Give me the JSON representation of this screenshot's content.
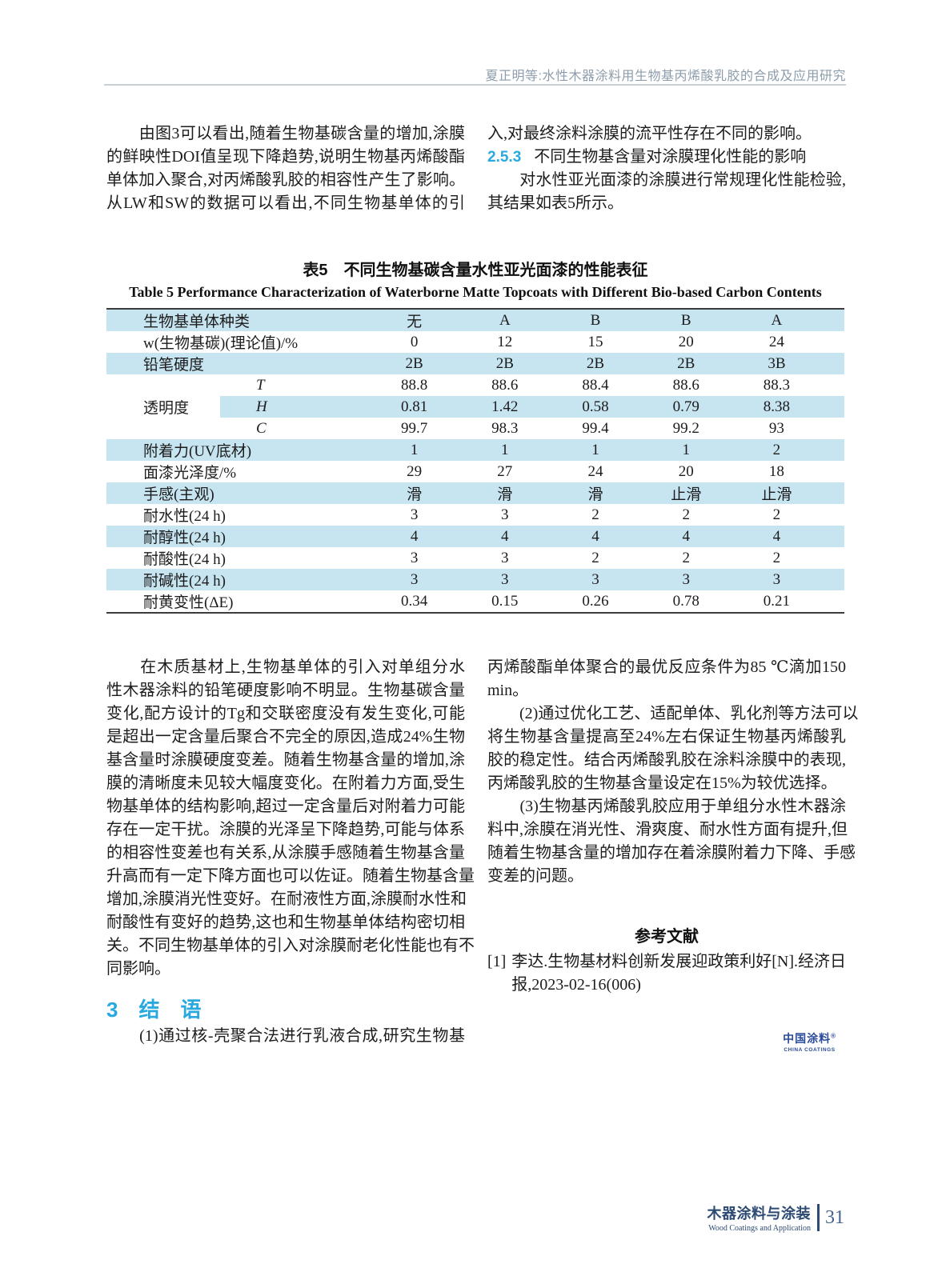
{
  "colors": {
    "accent_cyan": "#29a9e0",
    "table_row_blue": "#c7e4f1",
    "running_head_gray": "#8d9dab",
    "footer_navy": "#2c4a73",
    "logo_blue": "#2a4b9b"
  },
  "header": {
    "running_title": "夏正明等:水性木器涂料用生物基丙烯酸乳胶的合成及应用研究"
  },
  "intro": {
    "left_lines": [
      "　　由图3可以看出,随着生物基碳含量的增加,涂膜",
      "的鲜映性DOI值呈现下降趋势,说明生物基丙烯酸酯",
      "单体加入聚合,对丙烯酸乳胶的相容性产生了影响。",
      "从LW和SW的数据可以看出,不同生物基单体的引"
    ],
    "right_line_1": "入,对最终涂料涂膜的流平性存在不同的影响。",
    "section": {
      "number": "2.5.3",
      "title": "不同生物基含量对涂膜理化性能的影响"
    },
    "right_line_2": "　　对水性亚光面漆的涂膜进行常规理化性能检验,",
    "right_line_3": "其结果如表5所示。"
  },
  "table": {
    "caption_zh": "表5　不同生物基碳含量水性亚光面漆的性能表征",
    "caption_en": "Table 5   Performance Characterization of Waterborne Matte Topcoats with Different Bio-based Carbon Contents",
    "rows": [
      {
        "label": "生物基单体种类",
        "values": [
          "无",
          "A",
          "B",
          "B",
          "A"
        ]
      },
      {
        "label": "w(生物基碳)(理论值)/%",
        "values": [
          "0",
          "12",
          "15",
          "20",
          "24"
        ]
      },
      {
        "label": "铅笔硬度",
        "values": [
          "2B",
          "2B",
          "2B",
          "2B",
          "3B"
        ]
      },
      {
        "group": "",
        "sub": "T",
        "values": [
          "88.8",
          "88.6",
          "88.4",
          "88.6",
          "88.3"
        ]
      },
      {
        "group": "透明度",
        "sub": "H",
        "values": [
          "0.81",
          "1.42",
          "0.58",
          "0.79",
          "8.38"
        ]
      },
      {
        "group": "",
        "sub": "C",
        "values": [
          "99.7",
          "98.3",
          "99.4",
          "99.2",
          "93"
        ]
      },
      {
        "label": "附着力(UV底材)",
        "values": [
          "1",
          "1",
          "1",
          "1",
          "2"
        ]
      },
      {
        "label": "面漆光泽度/%",
        "values": [
          "29",
          "27",
          "24",
          "20",
          "18"
        ]
      },
      {
        "label": "手感(主观)",
        "values": [
          "滑",
          "滑",
          "滑",
          "止滑",
          "止滑"
        ]
      },
      {
        "label": "耐水性(24 h)",
        "values": [
          "3",
          "3",
          "2",
          "2",
          "2"
        ]
      },
      {
        "label": "耐醇性(24 h)",
        "values": [
          "4",
          "4",
          "4",
          "4",
          "4"
        ]
      },
      {
        "label": "耐酸性(24 h)",
        "values": [
          "3",
          "3",
          "2",
          "2",
          "2"
        ]
      },
      {
        "label": "耐碱性(24 h)",
        "values": [
          "3",
          "3",
          "3",
          "3",
          "3"
        ]
      },
      {
        "label": "耐黄变性(ΔE)",
        "values": [
          "0.34",
          "0.15",
          "0.26",
          "0.78",
          "0.21"
        ]
      }
    ]
  },
  "discussion": {
    "left_lines": [
      "　　在木质基材上,生物基单体的引入对单组分水",
      "性木器涂料的铅笔硬度影响不明显。生物基碳含量",
      "变化,配方设计的Tg和交联密度没有发生变化,可能",
      "是超出一定含量后聚合不完全的原因,造成24%生物",
      "基含量时涂膜硬度变差。随着生物基含量的增加,涂",
      "膜的清晰度未见较大幅度变化。在附着力方面,受生",
      "物基单体的结构影响,超过一定含量后对附着力可能",
      "存在一定干扰。涂膜的光泽呈下降趋势,可能与体系",
      "的相容性变差也有关系,从涂膜手感随着生物基含量",
      "升高而有一定下降方面也可以佐证。随着生物基含量",
      "增加,涂膜消光性变好。在耐液性方面,涂膜耐水性和",
      "耐酸性有变好的趋势,这也和生物基单体结构密切相",
      "关。不同生物基单体的引入对涂膜耐老化性能也有不",
      "同影响。"
    ]
  },
  "conclusion": {
    "heading": "3　结　语",
    "left_line": "　　(1)通过核-壳聚合法进行乳液合成,研究生物基",
    "right_lines": [
      "丙烯酸酯单体聚合的最优反应条件为85 ℃滴加150",
      "min。",
      "　　(2)通过优化工艺、适配单体、乳化剂等方法可以",
      "将生物基含量提高至24%左右保证生物基丙烯酸乳",
      "胶的稳定性。结合丙烯酸乳胶在涂料涂膜中的表现,",
      "丙烯酸乳胶的生物基含量设定在15%为较优选择。",
      "　　(3)生物基丙烯酸乳胶应用于单组分水性木器涂",
      "料中,涂膜在消光性、滑爽度、耐水性方面有提升,但",
      "随着生物基含量的增加存在着涂膜附着力下降、手感",
      "变差的问题。"
    ]
  },
  "references": {
    "heading": "参考文献",
    "item1_tag": "[1]",
    "item1_line1": "李达.生物基材料创新发展迎政策利好[N].经济日",
    "item1_line2": "报,2023-02-16(006)"
  },
  "logo": {
    "name_zh": "中国涂料",
    "reg": "®",
    "name_en": "CHINA COATINGS"
  },
  "footer": {
    "journal_zh": "木器涂料与涂装",
    "journal_en": "Wood Coatings and Application",
    "page_number": "31"
  }
}
